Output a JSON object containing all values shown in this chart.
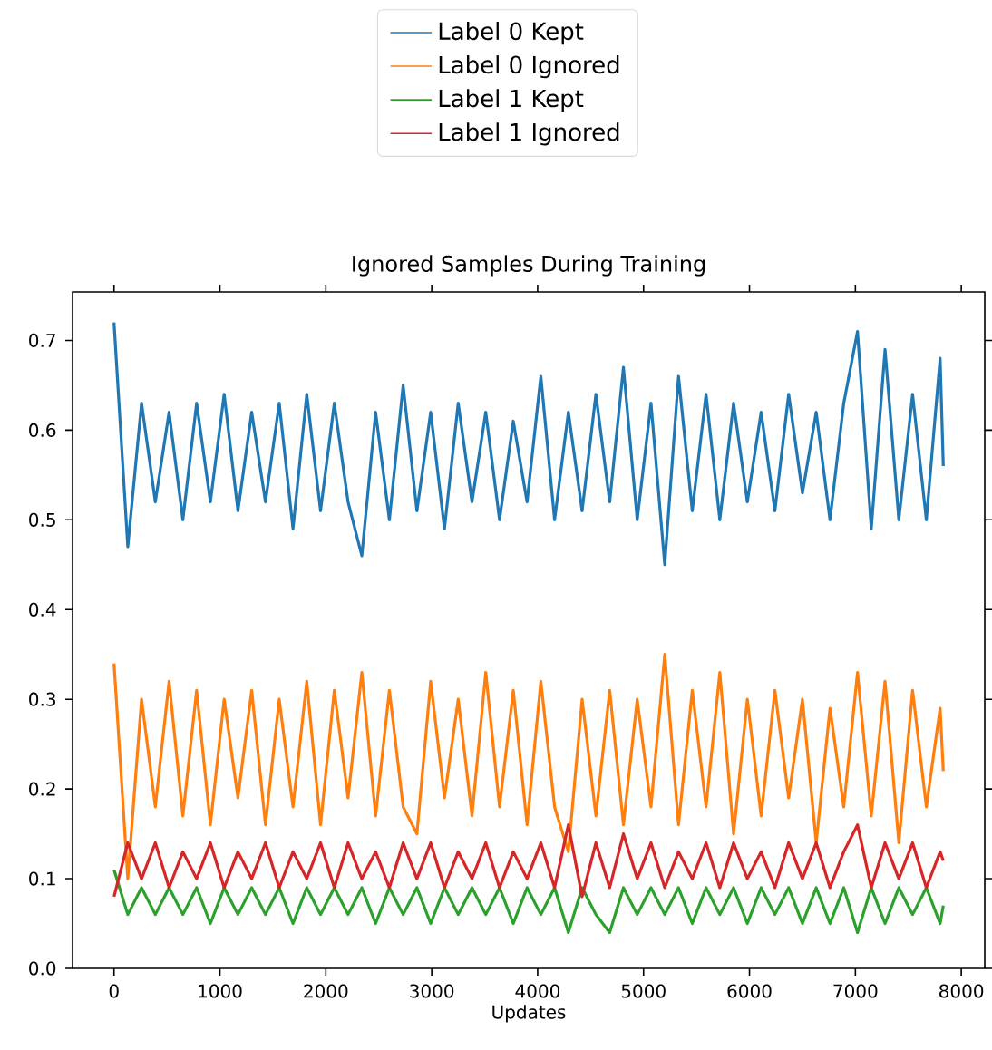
{
  "chart_data": {
    "type": "line",
    "title": "Ignored Samples During Training",
    "xlabel": "Updates",
    "x": [
      0,
      130,
      260,
      390,
      520,
      650,
      780,
      910,
      1040,
      1170,
      1300,
      1430,
      1560,
      1690,
      1820,
      1950,
      2080,
      2210,
      2340,
      2470,
      2600,
      2730,
      2860,
      2990,
      3120,
      3250,
      3380,
      3510,
      3640,
      3770,
      3900,
      4030,
      4160,
      4290,
      4420,
      4550,
      4680,
      4810,
      4940,
      5070,
      5200,
      5330,
      5460,
      5590,
      5720,
      5850,
      5980,
      6110,
      6240,
      6370,
      6500,
      6630,
      6760,
      6890,
      7020,
      7150,
      7280,
      7410,
      7540,
      7670,
      7800,
      7830
    ],
    "series": [
      {
        "name": "Label 0 Kept",
        "color": "#1f77b4",
        "values": [
          0.72,
          0.47,
          0.63,
          0.52,
          0.62,
          0.5,
          0.63,
          0.52,
          0.64,
          0.51,
          0.62,
          0.52,
          0.63,
          0.49,
          0.64,
          0.51,
          0.63,
          0.52,
          0.46,
          0.62,
          0.5,
          0.65,
          0.51,
          0.62,
          0.49,
          0.63,
          0.52,
          0.62,
          0.5,
          0.61,
          0.52,
          0.66,
          0.5,
          0.62,
          0.51,
          0.64,
          0.52,
          0.67,
          0.5,
          0.63,
          0.45,
          0.66,
          0.51,
          0.64,
          0.5,
          0.63,
          0.52,
          0.62,
          0.51,
          0.64,
          0.53,
          0.62,
          0.5,
          0.63,
          0.71,
          0.49,
          0.69,
          0.5,
          0.64,
          0.5,
          0.68,
          0.56
        ]
      },
      {
        "name": "Label 0 Ignored",
        "color": "#ff7f0e",
        "values": [
          0.34,
          0.1,
          0.3,
          0.18,
          0.32,
          0.17,
          0.31,
          0.16,
          0.3,
          0.19,
          0.31,
          0.16,
          0.3,
          0.18,
          0.32,
          0.16,
          0.31,
          0.19,
          0.33,
          0.17,
          0.31,
          0.18,
          0.15,
          0.32,
          0.19,
          0.3,
          0.17,
          0.33,
          0.18,
          0.31,
          0.16,
          0.32,
          0.18,
          0.13,
          0.3,
          0.17,
          0.31,
          0.16,
          0.3,
          0.18,
          0.35,
          0.16,
          0.31,
          0.18,
          0.33,
          0.15,
          0.3,
          0.17,
          0.31,
          0.19,
          0.3,
          0.14,
          0.29,
          0.18,
          0.33,
          0.17,
          0.32,
          0.14,
          0.31,
          0.18,
          0.29,
          0.22
        ]
      },
      {
        "name": "Label 1 Kept",
        "color": "#2ca02c",
        "values": [
          0.11,
          0.06,
          0.09,
          0.06,
          0.09,
          0.06,
          0.09,
          0.05,
          0.09,
          0.06,
          0.09,
          0.06,
          0.09,
          0.05,
          0.09,
          0.06,
          0.09,
          0.06,
          0.09,
          0.05,
          0.09,
          0.06,
          0.09,
          0.05,
          0.09,
          0.06,
          0.09,
          0.06,
          0.09,
          0.05,
          0.09,
          0.06,
          0.09,
          0.04,
          0.09,
          0.06,
          0.04,
          0.09,
          0.06,
          0.09,
          0.06,
          0.09,
          0.05,
          0.09,
          0.06,
          0.09,
          0.05,
          0.09,
          0.06,
          0.09,
          0.05,
          0.09,
          0.05,
          0.09,
          0.04,
          0.09,
          0.05,
          0.09,
          0.06,
          0.09,
          0.05,
          0.07
        ]
      },
      {
        "name": "Label 1 Ignored",
        "color": "#d62728",
        "values": [
          0.08,
          0.14,
          0.1,
          0.14,
          0.09,
          0.13,
          0.1,
          0.14,
          0.09,
          0.13,
          0.1,
          0.14,
          0.09,
          0.13,
          0.1,
          0.14,
          0.09,
          0.14,
          0.1,
          0.13,
          0.09,
          0.14,
          0.1,
          0.14,
          0.09,
          0.13,
          0.1,
          0.14,
          0.09,
          0.13,
          0.1,
          0.14,
          0.09,
          0.16,
          0.08,
          0.14,
          0.09,
          0.15,
          0.1,
          0.14,
          0.09,
          0.13,
          0.1,
          0.14,
          0.09,
          0.14,
          0.1,
          0.13,
          0.09,
          0.14,
          0.1,
          0.14,
          0.09,
          0.13,
          0.16,
          0.09,
          0.14,
          0.1,
          0.14,
          0.09,
          0.13,
          0.12
        ]
      }
    ],
    "xlim": [
      -391.5,
      8221.5
    ],
    "ylim": [
      0.0,
      0.754
    ],
    "xticks": [
      0,
      1000,
      2000,
      3000,
      4000,
      5000,
      6000,
      7000,
      8000
    ],
    "yticks": [
      {
        "value": 0.0,
        "label": "0.0"
      },
      0.1,
      0.2,
      0.3,
      0.4,
      0.5,
      0.6,
      0.7
    ],
    "legend": "top"
  }
}
